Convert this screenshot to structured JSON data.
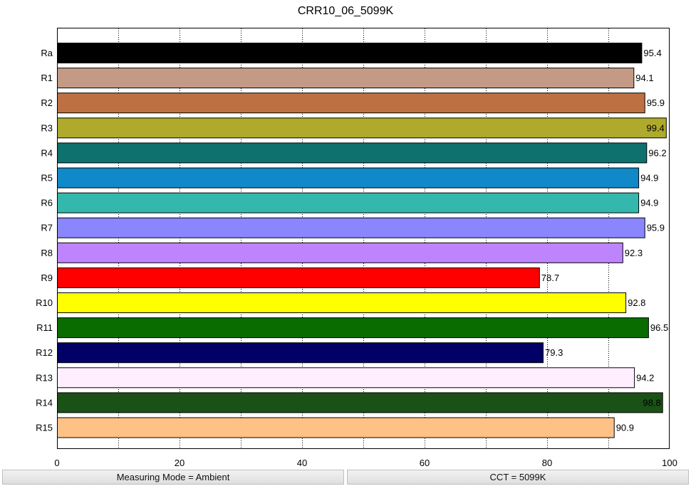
{
  "chart_data": {
    "type": "bar",
    "orientation": "horizontal",
    "title": "CRR10_06_5099K",
    "xlabel": "",
    "ylabel": "",
    "xlim": [
      0,
      100
    ],
    "x_ticks": [
      0,
      20,
      40,
      60,
      80,
      100
    ],
    "grid": "vertical dotted every 10",
    "legend": "none",
    "categories": [
      "Ra",
      "R1",
      "R2",
      "R3",
      "R4",
      "R5",
      "R6",
      "R7",
      "R8",
      "R9",
      "R10",
      "R11",
      "R12",
      "R13",
      "R14",
      "R15"
    ],
    "values": [
      95.4,
      94.1,
      95.9,
      99.4,
      96.2,
      94.9,
      94.9,
      95.9,
      92.3,
      78.7,
      92.8,
      96.5,
      79.3,
      94.2,
      98.8,
      90.9
    ],
    "value_labels": [
      "95.4",
      "94.1",
      "95.9",
      "99.4",
      "96.2",
      "94.9",
      "94.9",
      "95.9",
      "92.3",
      "78.7",
      "92.8",
      "96.5",
      "79.3",
      "94.2",
      "98.8",
      "90.9"
    ],
    "colors": [
      "#000000",
      "#c49a86",
      "#bd7143",
      "#afaa2b",
      "#0f716e",
      "#1188c8",
      "#34b8ae",
      "#8986fe",
      "#bd84fe",
      "#ff0000",
      "#ffff00",
      "#096c00",
      "#000066",
      "#ffeffe",
      "#1a5117",
      "#fec186"
    ]
  },
  "status_bar": {
    "measuring_mode": "Measuring Mode = Ambient",
    "cct": "CCT = 5099K"
  }
}
